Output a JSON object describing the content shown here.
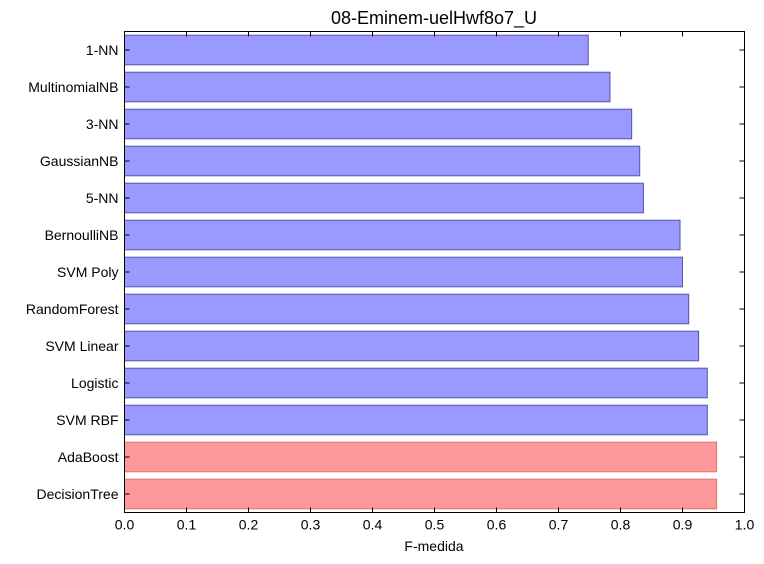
{
  "chart_data": {
    "type": "bar",
    "orientation": "horizontal",
    "title": "08-Eminem-uelHwf8o7_U",
    "xlabel": "F-medida",
    "ylabel": "",
    "xlim": [
      0.0,
      1.0
    ],
    "x_ticks": [
      "0.0",
      "0.1",
      "0.2",
      "0.3",
      "0.4",
      "0.5",
      "0.6",
      "0.7",
      "0.8",
      "0.9",
      "1.0"
    ],
    "grid": false,
    "categories": [
      "1-NN",
      "MultinomialNB",
      "3-NN",
      "GaussianNB",
      "5-NN",
      "BernoulliNB",
      "SVM Poly",
      "RandomForest",
      "SVM Linear",
      "Logistic",
      "SVM RBF",
      "AdaBoost",
      "DecisionTree"
    ],
    "values": [
      0.748,
      0.783,
      0.818,
      0.831,
      0.837,
      0.896,
      0.9,
      0.91,
      0.926,
      0.94,
      0.94,
      0.955,
      0.955
    ],
    "highlighted": [
      "AdaBoost",
      "DecisionTree"
    ],
    "colors": {
      "default_fill": "#9999ff",
      "default_edge": "#5555aa",
      "highlight_fill": "#ff9999",
      "highlight_edge": "#e07070",
      "axis": "#000000"
    }
  }
}
